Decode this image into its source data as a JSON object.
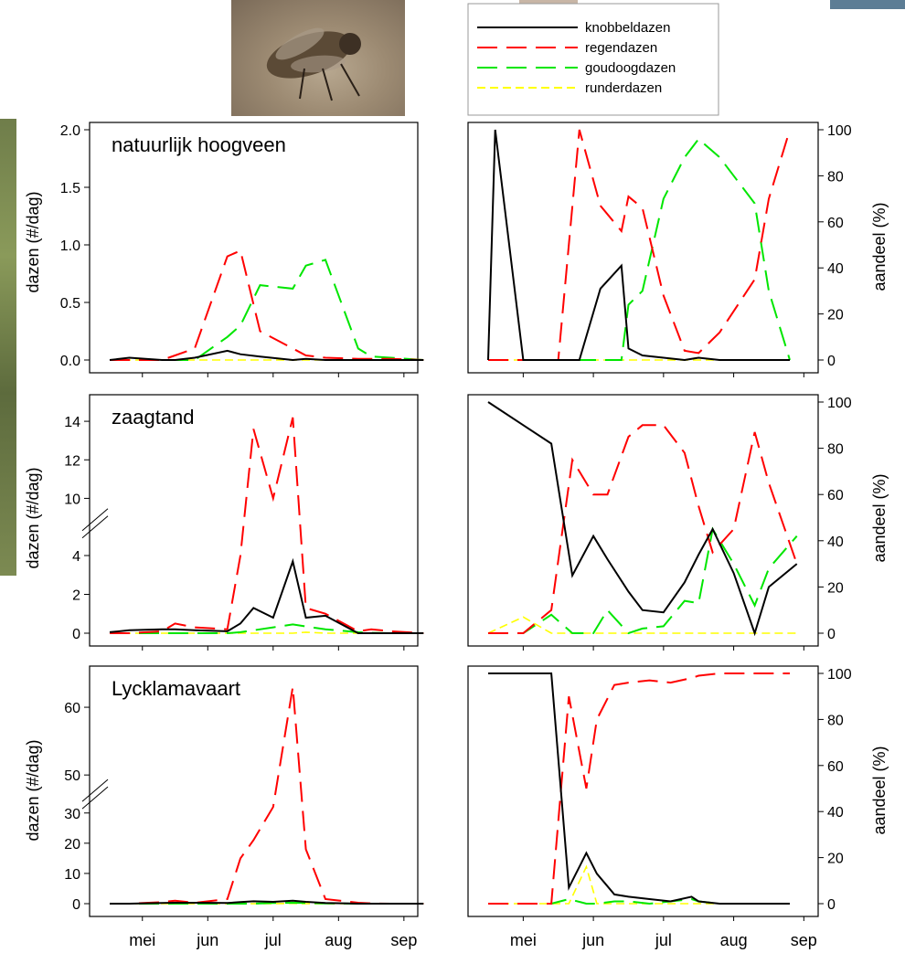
{
  "colors": {
    "knobbeldazen": "#000000",
    "regendazen": "#ff0000",
    "goudoogdazen": "#00e600",
    "runderdazen": "#ffff00"
  },
  "legend": [
    {
      "key": "knobbeldazen",
      "label": "knobbeldazen",
      "dash": "solid"
    },
    {
      "key": "regendazen",
      "label": "regendazen",
      "dash": "long"
    },
    {
      "key": "goudoogdazen",
      "label": "goudoogdazen",
      "dash": "long"
    },
    {
      "key": "runderdazen",
      "label": "runderdazen",
      "dash": "short"
    }
  ],
  "month_labels": [
    "mei",
    "jun",
    "jul",
    "aug",
    "sep"
  ],
  "left_ylabel": "dazen (#/dag)",
  "right_ylabel": "aandeel (%)",
  "images": {
    "top_photo": "fly-photo"
  },
  "chart_data": [
    {
      "type": "line",
      "panel": "left-1",
      "label": "natuurlijk hoogveen",
      "ylabel": "dazen (#/dag)",
      "ylim": [
        0,
        2
      ],
      "yticks": [
        "0.0",
        "0.5",
        "1.0",
        "1.5",
        "2.0"
      ],
      "x": [
        0,
        0.3,
        0.8,
        1,
        1.3,
        1.8,
        2,
        2.3,
        2.8,
        3,
        3.3,
        3.8,
        4,
        4.3,
        4.8
      ],
      "series": [
        {
          "name": "knobbeldazen",
          "values": [
            0,
            0.02,
            0,
            0,
            0.02,
            0.08,
            0.05,
            0.03,
            0,
            0.01,
            0,
            0,
            0,
            0,
            0
          ]
        },
        {
          "name": "regendazen",
          "values": [
            0,
            0,
            0,
            0.04,
            0.1,
            0.9,
            0.95,
            0.25,
            0.1,
            0.04,
            0.02,
            0.01,
            0.01,
            0.01,
            0
          ]
        },
        {
          "name": "goudoogdazen",
          "values": [
            0,
            0,
            0,
            0,
            0,
            0.2,
            0.3,
            0.65,
            0.62,
            0.82,
            0.87,
            0.1,
            0.03,
            0.02,
            0
          ]
        },
        {
          "name": "runderdazen",
          "values": [
            0,
            0,
            0,
            0,
            0,
            0,
            0,
            0,
            0,
            0,
            0,
            0,
            0,
            0,
            0
          ]
        }
      ]
    },
    {
      "type": "line",
      "panel": "right-1",
      "ylabel": "aandeel (%)",
      "ylim": [
        0,
        100
      ],
      "yticks": [
        "0",
        "20",
        "40",
        "60",
        "80",
        "100"
      ],
      "x": [
        0,
        0.1,
        0.5,
        1,
        1.3,
        1.6,
        1.9,
        2,
        2.2,
        2.5,
        2.8,
        3,
        3.3,
        3.8,
        4,
        4.3
      ],
      "series": [
        {
          "name": "knobbeldazen",
          "values": [
            0,
            100,
            0,
            0,
            0,
            31,
            41,
            5,
            2,
            1,
            0,
            1,
            0,
            0,
            0,
            0
          ]
        },
        {
          "name": "regendazen",
          "values": [
            0,
            0,
            0,
            0,
            100,
            67,
            56,
            71,
            66,
            28,
            4,
            3,
            12,
            35,
            70,
            100
          ]
        },
        {
          "name": "goudoogdazen",
          "values": [
            0,
            0,
            0,
            0,
            0,
            0,
            0,
            24,
            30,
            70,
            88,
            96,
            88,
            68,
            30,
            0
          ]
        },
        {
          "name": "runderdazen",
          "values": [
            0,
            0,
            0,
            0,
            0,
            0,
            0,
            0,
            0,
            0,
            0,
            0,
            0,
            0,
            0,
            0
          ]
        }
      ]
    },
    {
      "type": "line",
      "panel": "left-2",
      "label": "zaagtand",
      "ylabel": "dazen (#/dag)",
      "ylim": [
        0,
        15
      ],
      "axis_break": [
        5,
        9
      ],
      "yticks": [
        "0",
        "2",
        "4",
        "10",
        "12",
        "14"
      ],
      "x": [
        0,
        0.3,
        0.8,
        1,
        1.3,
        1.8,
        2,
        2.2,
        2.5,
        2.8,
        3,
        3.3,
        3.8,
        4,
        4.3,
        4.8
      ],
      "series": [
        {
          "name": "knobbeldazen",
          "values": [
            0.05,
            0.15,
            0.2,
            0.2,
            0.15,
            0.1,
            0.5,
            1.3,
            0.8,
            3.7,
            0.8,
            0.9,
            0,
            0,
            0,
            0
          ]
        },
        {
          "name": "regendazen",
          "values": [
            0,
            0,
            0.1,
            0.5,
            0.3,
            0.2,
            4,
            13.6,
            10,
            14.2,
            1.3,
            1,
            0.1,
            0.2,
            0.1,
            0
          ]
        },
        {
          "name": "goudoogdazen",
          "values": [
            0,
            0,
            0,
            0,
            0,
            0,
            0.05,
            0.15,
            0.3,
            0.45,
            0.35,
            0.2,
            0.05,
            0.02,
            0,
            0
          ]
        },
        {
          "name": "runderdazen",
          "values": [
            0,
            0,
            0,
            0,
            0,
            0,
            0,
            0,
            0,
            0,
            0.05,
            0,
            0,
            0,
            0,
            0
          ]
        }
      ]
    },
    {
      "type": "line",
      "panel": "right-2",
      "ylabel": "aandeel (%)",
      "ylim": [
        0,
        100
      ],
      "yticks": [
        "0",
        "20",
        "40",
        "60",
        "80",
        "100"
      ],
      "x": [
        0,
        0.5,
        0.9,
        1.2,
        1.5,
        1.7,
        2,
        2.2,
        2.5,
        2.8,
        3,
        3.2,
        3.5,
        3.8,
        4,
        4.4
      ],
      "series": [
        {
          "name": "knobbeldazen",
          "values": [
            100,
            90,
            82,
            25,
            42,
            32,
            18,
            10,
            9,
            22,
            34,
            45,
            26,
            0,
            20,
            30
          ]
        },
        {
          "name": "regendazen",
          "values": [
            0,
            0,
            10,
            75,
            60,
            60,
            85,
            90,
            90,
            78,
            55,
            35,
            45,
            87,
            65,
            30
          ]
        },
        {
          "name": "goudoogdazen",
          "values": [
            0,
            0,
            8,
            0,
            0,
            10,
            0,
            2,
            3,
            14,
            13,
            45,
            30,
            12,
            28,
            42
          ]
        },
        {
          "name": "runderdazen",
          "values": [
            0,
            7,
            0,
            0,
            0,
            0,
            0,
            0,
            0,
            0,
            0,
            0,
            0,
            0,
            0,
            0
          ]
        }
      ]
    },
    {
      "type": "line",
      "panel": "left-3",
      "label": "Lycklamavaart",
      "ylabel": "dazen (#/dag)",
      "ylim": [
        0,
        65
      ],
      "axis_break": [
        32,
        48
      ],
      "yticks": [
        "0",
        "10",
        "20",
        "30",
        "50",
        "60"
      ],
      "x": [
        0,
        0.3,
        0.8,
        1,
        1.3,
        1.8,
        2,
        2.2,
        2.5,
        2.8,
        3,
        3.3,
        3.8,
        4,
        4.3,
        4.8
      ],
      "series": [
        {
          "name": "knobbeldazen",
          "values": [
            0,
            0,
            0.2,
            0.3,
            0.3,
            0.2,
            0.5,
            0.8,
            0.6,
            1,
            0.6,
            0.2,
            0,
            0,
            0,
            0
          ]
        },
        {
          "name": "regendazen",
          "values": [
            0,
            0,
            0.5,
            1,
            0.3,
            1.5,
            15,
            21,
            32,
            63,
            18,
            1.5,
            0.3,
            0.1,
            0,
            0
          ]
        },
        {
          "name": "goudoogdazen",
          "values": [
            0,
            0,
            0,
            0,
            0,
            0,
            0,
            0,
            0.2,
            0.3,
            0.2,
            0.1,
            0,
            0,
            0,
            0
          ]
        },
        {
          "name": "runderdazen",
          "values": [
            0,
            0,
            0,
            0,
            0,
            0,
            0,
            0,
            0,
            0.1,
            0,
            0,
            0,
            0,
            0,
            0
          ]
        }
      ]
    },
    {
      "type": "line",
      "panel": "right-3",
      "ylabel": "aandeel (%)",
      "ylim": [
        0,
        100
      ],
      "yticks": [
        "0",
        "20",
        "40",
        "60",
        "80",
        "100"
      ],
      "x": [
        0,
        0.5,
        0.9,
        1.15,
        1.4,
        1.55,
        1.8,
        2,
        2.3,
        2.6,
        2.9,
        3,
        3.3,
        3.6,
        3.8,
        4.3
      ],
      "series": [
        {
          "name": "knobbeldazen",
          "values": [
            100,
            100,
            100,
            7,
            22,
            13,
            4,
            3,
            2,
            1,
            3,
            1,
            0,
            0,
            0,
            0
          ]
        },
        {
          "name": "regendazen",
          "values": [
            0,
            0,
            0,
            90,
            50,
            80,
            95,
            96,
            97,
            96,
            98,
            99,
            100,
            100,
            100,
            100
          ]
        },
        {
          "name": "goudoogdazen",
          "values": [
            0,
            0,
            0,
            2,
            0,
            0,
            1,
            1,
            0,
            1,
            2,
            1,
            0,
            0,
            0,
            0
          ]
        },
        {
          "name": "runderdazen",
          "values": [
            0,
            0,
            0,
            0,
            16,
            0,
            0,
            0,
            0,
            0,
            0,
            0,
            0,
            0,
            0,
            0
          ]
        }
      ]
    }
  ]
}
